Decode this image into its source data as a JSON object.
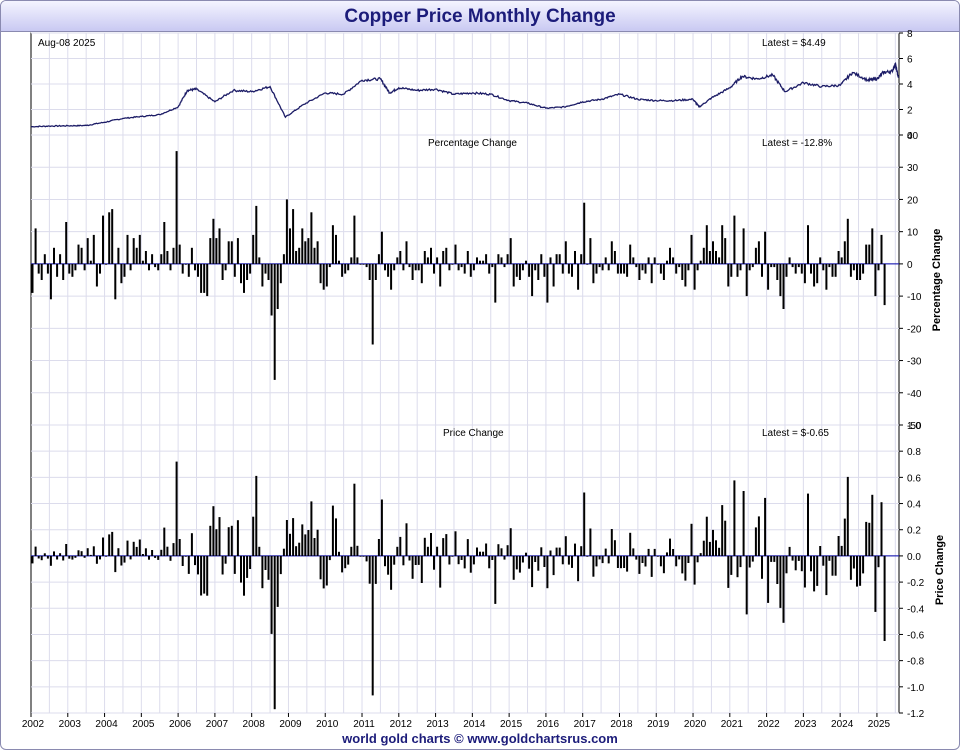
{
  "title": "Copper Price Monthly Change",
  "footer": "world gold charts © www.goldchartsrus.com",
  "colors": {
    "title": "#1c1c7a",
    "bars": "#000000",
    "line": "#1c1c66",
    "grid": "#dcdcec",
    "zero": "#0000aa"
  },
  "chart_data": [
    {
      "type": "line",
      "panel": "price",
      "date_label": "Aug-08  2025",
      "latest_label": "Latest = $4.49",
      "ylim": [
        0,
        8
      ],
      "yticks": [
        "0",
        "2",
        "4",
        "6",
        "8"
      ],
      "x": [
        "2002-01",
        "2002-07",
        "2003-01",
        "2003-07",
        "2004-01",
        "2004-07",
        "2005-01",
        "2005-07",
        "2006-01",
        "2006-04",
        "2006-07",
        "2007-01",
        "2007-07",
        "2008-01",
        "2008-07",
        "2008-12",
        "2009-06",
        "2010-01",
        "2010-07",
        "2011-01",
        "2011-07",
        "2011-10",
        "2012-01",
        "2012-07",
        "2013-01",
        "2013-07",
        "2014-01",
        "2014-07",
        "2015-01",
        "2015-07",
        "2016-01",
        "2016-07",
        "2017-01",
        "2017-07",
        "2018-01",
        "2018-07",
        "2019-01",
        "2019-07",
        "2020-01",
        "2020-03",
        "2020-07",
        "2021-01",
        "2021-05",
        "2021-10",
        "2022-03",
        "2022-07",
        "2023-01",
        "2023-07",
        "2024-01",
        "2024-05",
        "2024-10",
        "2025-01",
        "2025-03",
        "2025-06",
        "2025-07",
        "2025-08"
      ],
      "values": [
        0.65,
        0.7,
        0.72,
        0.75,
        1.0,
        1.3,
        1.45,
        1.6,
        2.2,
        3.5,
        3.6,
        2.6,
        3.5,
        3.4,
        3.8,
        1.4,
        2.4,
        3.3,
        3.2,
        4.3,
        4.4,
        3.3,
        3.7,
        3.5,
        3.6,
        3.2,
        3.3,
        3.2,
        2.7,
        2.5,
        2.1,
        2.2,
        2.6,
        2.8,
        3.2,
        2.8,
        2.7,
        2.7,
        2.8,
        2.2,
        2.9,
        3.7,
        4.6,
        4.4,
        4.7,
        3.4,
        4.1,
        3.8,
        3.9,
        4.9,
        4.3,
        4.4,
        4.9,
        5.0,
        5.6,
        4.49
      ]
    },
    {
      "type": "bar",
      "panel": "percentage",
      "title": "Percentage Change",
      "ylabel": "Percentage Change",
      "latest_label": "Latest = -12.8%",
      "ylim": [
        -50,
        40
      ],
      "yticks": [
        "-50",
        "-40",
        "-30",
        "-20",
        "-10",
        "0",
        "10",
        "20",
        "30",
        "40"
      ],
      "start": "2002-01",
      "values": [
        -9,
        11,
        -3,
        -5,
        3,
        -3,
        -11,
        5,
        -4,
        3,
        -5,
        13,
        -3,
        -4,
        -2,
        6,
        5,
        -2,
        8,
        1,
        9,
        -7,
        -3,
        15,
        0,
        16,
        17,
        -11,
        5,
        -6,
        -4,
        9,
        -2,
        8,
        5,
        9,
        1,
        4,
        -2,
        3,
        -1,
        -2,
        3,
        13,
        4,
        -2,
        5,
        35,
        6,
        -3,
        0,
        -4,
        5,
        -2,
        -4,
        -9,
        -9,
        -10,
        8,
        14,
        8,
        11,
        -5,
        -2,
        7,
        7,
        -4,
        8,
        -6,
        -9,
        -5,
        -3,
        9,
        18,
        2,
        -7,
        -3,
        -5,
        -16,
        -36,
        -14,
        -6,
        3,
        20,
        11,
        17,
        4,
        5,
        11,
        7,
        8,
        16,
        5,
        7,
        -6,
        -8,
        -7,
        -1,
        12,
        9,
        1,
        -4,
        -3,
        -2,
        2,
        15,
        2,
        0,
        0,
        -1,
        -5,
        -25,
        -5,
        3,
        10,
        -2,
        -4,
        -8,
        -2,
        2,
        4,
        -2,
        7,
        -1,
        -5,
        -2,
        -2,
        -6,
        4,
        2,
        5,
        -3,
        2,
        -7,
        4,
        5,
        -2,
        0,
        6,
        -2,
        -1,
        -3,
        4,
        -4,
        -2,
        2,
        1,
        1,
        3,
        -3,
        -1,
        -12,
        3,
        2,
        -1,
        3,
        8,
        -7,
        -4,
        -5,
        -2,
        1,
        -4,
        -10,
        -2,
        -5,
        3,
        -4,
        -12,
        2,
        -7,
        3,
        3,
        -3,
        7,
        -3,
        -4,
        4,
        -8,
        3,
        19,
        0,
        8,
        -6,
        -3,
        -1,
        -2,
        2,
        -2,
        7,
        4,
        -3,
        -3,
        -3,
        -4,
        6,
        2,
        -1,
        -5,
        -2,
        -3,
        2,
        -6,
        2,
        0,
        -3,
        -5,
        1,
        5,
        2,
        -3,
        -1,
        -5,
        -7,
        -2,
        9,
        -8,
        -2,
        1,
        5,
        12,
        4,
        7,
        4,
        2,
        12,
        8,
        -7,
        -4,
        15,
        -4,
        -2,
        11,
        -10,
        -2,
        -1,
        5,
        7,
        -4,
        10,
        -8,
        -1,
        -1,
        -5,
        -10,
        -14,
        -4,
        2,
        -1,
        -3,
        -1,
        -3,
        -6,
        12,
        -3,
        -7,
        -6,
        2,
        -2,
        -8,
        -1,
        -4,
        -4,
        4,
        2,
        7,
        14,
        -4,
        -2,
        -5,
        -5,
        -3,
        6,
        6,
        11,
        -10,
        -2,
        9,
        -12.8
      ]
    },
    {
      "type": "bar",
      "panel": "price_change",
      "title": "Price Change",
      "ylabel": "Price Change",
      "latest_label": "Latest = $-0.65",
      "ylim": [
        -1.2,
        1.0
      ],
      "yticks": [
        "-1.2",
        "-1.0",
        "-0.8",
        "-0.6",
        "-0.4",
        "-0.2",
        "0.0",
        "0.2",
        "0.4",
        "0.6",
        "0.8",
        "1.0"
      ],
      "start": "2002-01",
      "multiplier_of": "percentage",
      "x_tick_labels": [
        "2002",
        "2003",
        "2004",
        "2005",
        "2006",
        "2007",
        "2008",
        "2009",
        "2010",
        "2011",
        "2012",
        "2013",
        "2014",
        "2015",
        "2016",
        "2017",
        "2018",
        "2019",
        "2020",
        "2021",
        "2022",
        "2023",
        "2024",
        "2025"
      ]
    }
  ]
}
